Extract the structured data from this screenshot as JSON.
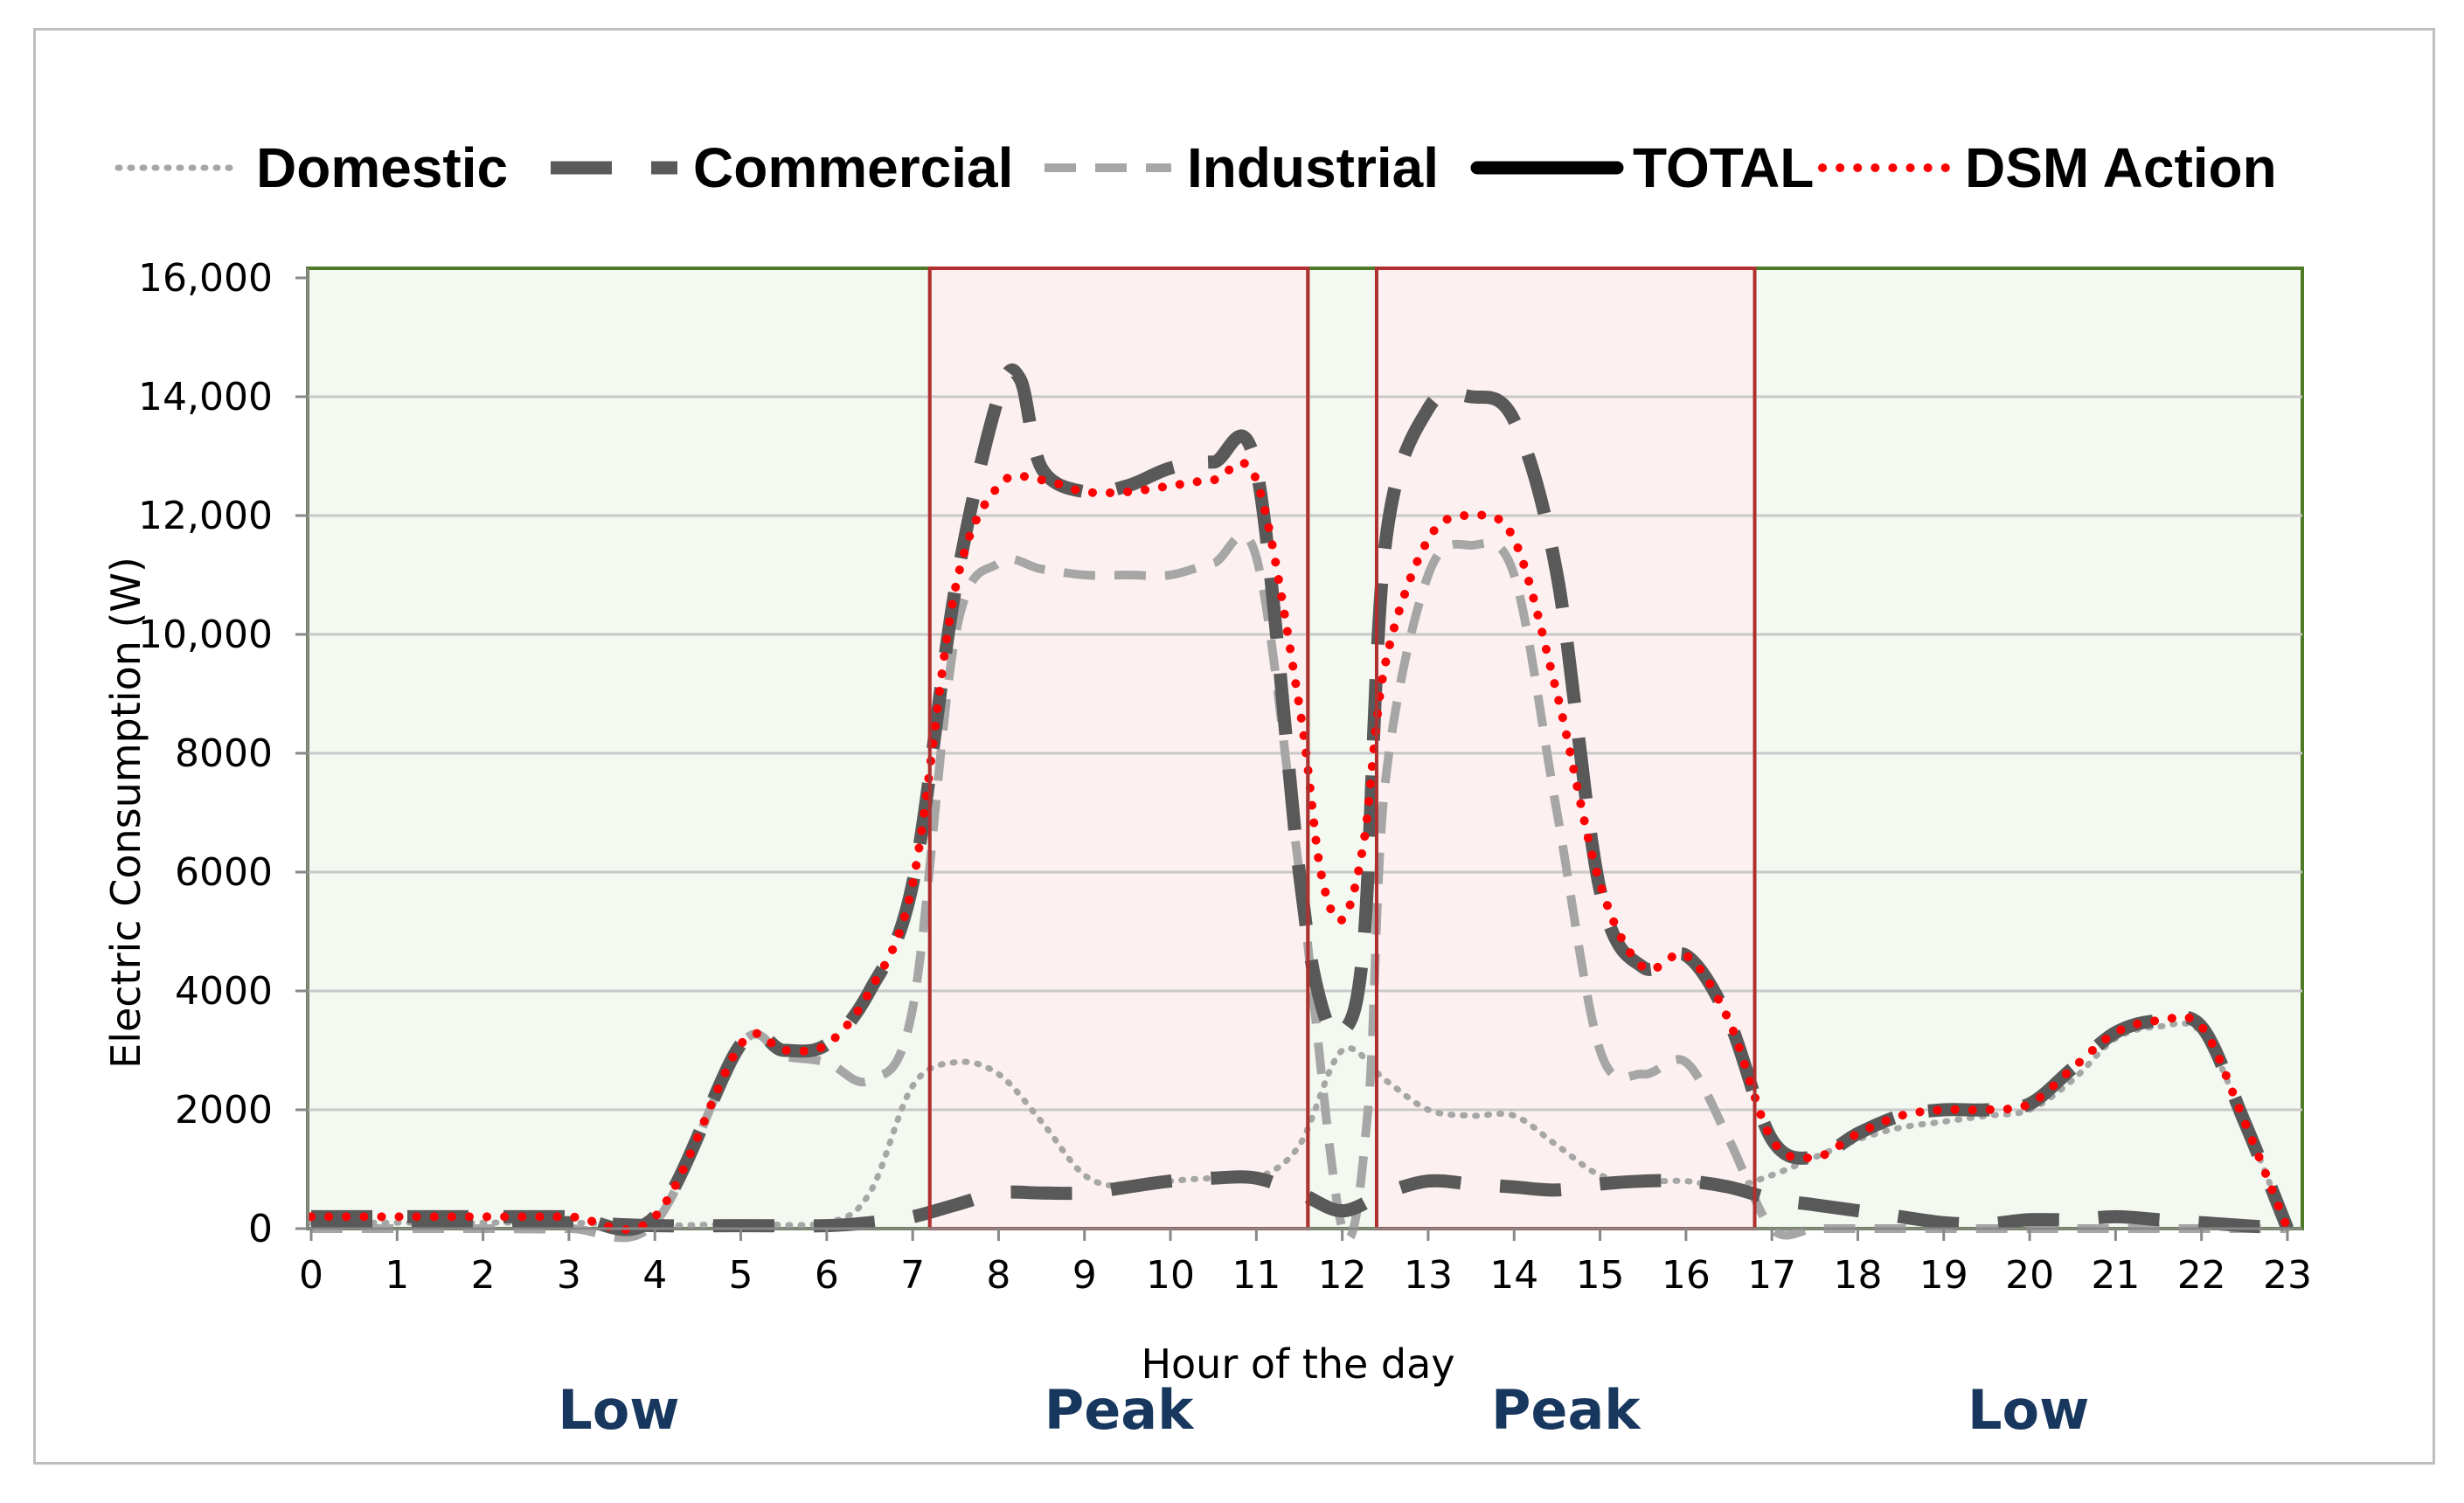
{
  "chart_data": {
    "type": "line",
    "title": "",
    "xlabel": "Hour of the day",
    "ylabel": "Electric Consumption (W)",
    "xlim": [
      0,
      23
    ],
    "ylim": [
      0,
      16000
    ],
    "x_ticks": [
      "0",
      "1",
      "2",
      "3",
      "4",
      "5",
      "6",
      "7",
      "8",
      "9",
      "10",
      "11",
      "12",
      "13",
      "14",
      "15",
      "16",
      "17",
      "18",
      "19",
      "20",
      "21",
      "22",
      "23"
    ],
    "y_ticks": [
      "0",
      "2000",
      "4000",
      "6000",
      "8000",
      "10,000",
      "12,000",
      "14,000",
      "16,000"
    ],
    "y_tick_values": [
      0,
      2000,
      4000,
      6000,
      8000,
      10000,
      12000,
      14000,
      16000
    ],
    "grid": true,
    "legend_position": "top",
    "periods": [
      {
        "label": "Low",
        "from": 0,
        "to": 7.2,
        "kind": "low"
      },
      {
        "label": "Peak",
        "from": 7.2,
        "to": 11.6,
        "kind": "peak"
      },
      {
        "label": "",
        "from": 11.6,
        "to": 12.4,
        "kind": "low"
      },
      {
        "label": "Peak",
        "from": 12.4,
        "to": 16.8,
        "kind": "peak"
      },
      {
        "label": "Low",
        "from": 16.8,
        "to": 23,
        "kind": "low"
      }
    ],
    "series": [
      {
        "name": "Domestic",
        "style": "dotted",
        "color": "#a6a6a6",
        "x": [
          0,
          1,
          2,
          3,
          4,
          5,
          6,
          6.5,
          7,
          7.5,
          8,
          8.5,
          9,
          9.5,
          10,
          10.5,
          11,
          11.5,
          12,
          12.5,
          13,
          13.5,
          14,
          14.5,
          15,
          15.5,
          16,
          16.5,
          17,
          17.5,
          18,
          18.5,
          19,
          19.5,
          20,
          20.5,
          21,
          21.5,
          22,
          22.5,
          23
        ],
        "y": [
          100,
          100,
          100,
          100,
          50,
          80,
          100,
          600,
          2400,
          2800,
          2600,
          1800,
          900,
          700,
          800,
          850,
          850,
          1400,
          3000,
          2500,
          2000,
          1900,
          1900,
          1400,
          900,
          800,
          800,
          700,
          900,
          1200,
          1500,
          1700,
          1800,
          1900,
          2000,
          2500,
          3200,
          3400,
          3300,
          1800,
          0
        ]
      },
      {
        "name": "Commercial",
        "style": "long-dash",
        "color": "#595959",
        "x": [
          0,
          1,
          2,
          3,
          4,
          5,
          6,
          6.5,
          7,
          7.5,
          8,
          8.5,
          9,
          9.5,
          10,
          10.5,
          11,
          11.5,
          12,
          12.5,
          13,
          13.5,
          14,
          14.5,
          15,
          15.5,
          16,
          16.5,
          17,
          17.5,
          18,
          18.5,
          19,
          19.5,
          20,
          20.5,
          21,
          21.5,
          22,
          22.5,
          23
        ],
        "y": [
          100,
          100,
          100,
          100,
          50,
          50,
          50,
          100,
          200,
          400,
          600,
          600,
          600,
          700,
          800,
          850,
          850,
          600,
          300,
          600,
          800,
          750,
          700,
          650,
          750,
          800,
          800,
          700,
          500,
          400,
          300,
          200,
          100,
          80,
          150,
          150,
          200,
          150,
          100,
          50,
          0
        ]
      },
      {
        "name": "Industrial",
        "style": "dash",
        "color": "#a6a6a6",
        "x": [
          0,
          1,
          2,
          3,
          4,
          5,
          5.5,
          6,
          6.5,
          7,
          7.5,
          8,
          8.5,
          9,
          9.5,
          10,
          10.5,
          11,
          11.5,
          12,
          12.3,
          12.5,
          13,
          13.5,
          14,
          14.5,
          15,
          15.5,
          16,
          16.5,
          17,
          17.5,
          18,
          19,
          20,
          21,
          22,
          23
        ],
        "y": [
          0,
          0,
          0,
          0,
          100,
          3100,
          2900,
          2800,
          2500,
          3700,
          10000,
          11200,
          11100,
          11000,
          11000,
          11000,
          11200,
          11300,
          6000,
          0,
          2000,
          7500,
          11000,
          11500,
          11000,
          7000,
          3000,
          2600,
          2800,
          1500,
          0,
          0,
          0,
          0,
          0,
          0,
          0,
          0
        ]
      },
      {
        "name": "TOTAL",
        "style": "solid",
        "color": "#000000",
        "x": [
          0,
          1,
          2,
          3,
          4,
          5,
          5.5,
          6,
          6.5,
          7,
          7.5,
          8,
          8.25,
          8.5,
          9,
          9.5,
          10,
          10.5,
          11,
          11.5,
          11.75,
          12,
          12.25,
          12.5,
          13,
          13.5,
          14,
          14.5,
          15,
          15.5,
          16,
          16.5,
          17,
          17.5,
          18,
          18.5,
          19,
          19.5,
          20,
          20.5,
          21,
          21.5,
          22,
          22.5,
          23
        ],
        "y": [
          200,
          200,
          200,
          200,
          200,
          3100,
          3000,
          3100,
          4000,
          5800,
          10800,
          14000,
          14300,
          12800,
          12400,
          12500,
          12800,
          12900,
          12800,
          6000,
          3800,
          3300,
          4800,
          11500,
          13800,
          14000,
          13600,
          11000,
          5700,
          4400,
          4600,
          3500,
          1500,
          1200,
          1600,
          1900,
          2000,
          2000,
          2100,
          2700,
          3300,
          3500,
          3400,
          1800,
          0
        ]
      },
      {
        "name": "DSM Action",
        "style": "dotted",
        "color": "#ff0000",
        "x": [
          0,
          1,
          2,
          3,
          4,
          5,
          5.5,
          6,
          6.5,
          7,
          7.5,
          8,
          8.5,
          9,
          9.5,
          10,
          10.5,
          11,
          11.5,
          11.75,
          12,
          12.25,
          12.5,
          13,
          13.5,
          14,
          14.5,
          15,
          15.5,
          16,
          16.5,
          17,
          17.5,
          18,
          18.5,
          19,
          19.5,
          20,
          20.5,
          21,
          21.5,
          22,
          22.5,
          23
        ],
        "y": [
          200,
          200,
          200,
          200,
          200,
          3100,
          3000,
          3100,
          4000,
          5800,
          10800,
          12500,
          12600,
          12400,
          12400,
          12500,
          12600,
          12600,
          8800,
          6000,
          5200,
          6500,
          9500,
          11600,
          12000,
          11600,
          9000,
          5800,
          4400,
          4600,
          3500,
          1500,
          1200,
          1600,
          1900,
          2000,
          2000,
          2100,
          2700,
          3300,
          3500,
          3400,
          1800,
          0
        ]
      }
    ]
  }
}
